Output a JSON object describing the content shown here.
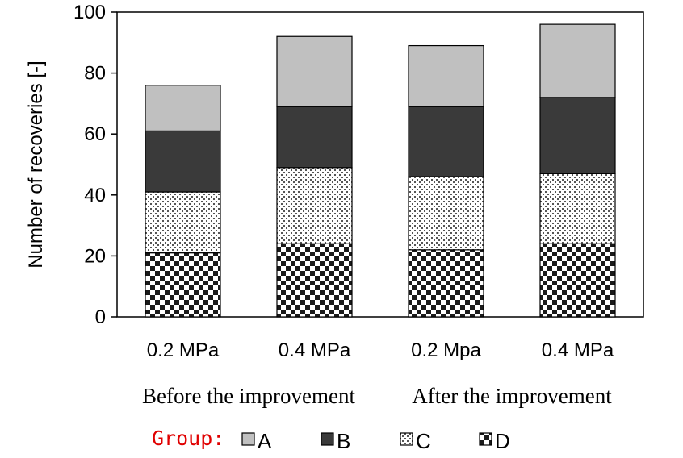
{
  "chart_data": {
    "type": "bar",
    "stacked": true,
    "ylabel": "Number of recoveries [-]",
    "ylim": [
      0,
      100
    ],
    "yticks": [
      0,
      20,
      40,
      60,
      80,
      100
    ],
    "grid": false,
    "categories": [
      "0.2 MPa",
      "0.4 MPa",
      "0.2 Mpa",
      "0.4 MPa"
    ],
    "groups": [
      {
        "label": "Before the improvement",
        "categories": [
          0,
          1
        ]
      },
      {
        "label": "After the improvement",
        "categories": [
          2,
          3
        ]
      }
    ],
    "legend": {
      "title": "Group:",
      "placement": "bottom"
    },
    "series": [
      {
        "name": "D",
        "values": [
          21,
          24,
          22,
          24
        ],
        "pattern": "checker"
      },
      {
        "name": "C",
        "values": [
          20,
          25,
          24,
          23
        ],
        "pattern": "dots"
      },
      {
        "name": "B",
        "values": [
          20,
          20,
          23,
          25
        ],
        "color": "#3a3a3a"
      },
      {
        "name": "A",
        "values": [
          15,
          23,
          20,
          24
        ],
        "color": "#c0c0c0"
      }
    ]
  }
}
